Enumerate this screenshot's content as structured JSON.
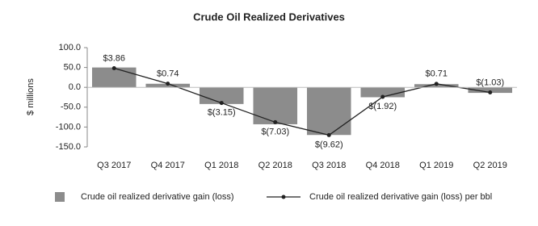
{
  "chart_data": {
    "type": "bar",
    "title": "Crude Oil Realized Derivatives",
    "y_label": "$ millions",
    "categories": [
      "Q3 2017",
      "Q4 2017",
      "Q1 2018",
      "Q2 2018",
      "Q3 2018",
      "Q4 2018",
      "Q1 2019",
      "Q2 2019"
    ],
    "series": [
      {
        "name": "Crude oil realized derivative gain (loss)",
        "type": "bar",
        "color": "#8c8c8c",
        "values": [
          50,
          9,
          -42,
          -93,
          -120,
          -25,
          8,
          -14
        ]
      },
      {
        "name": "Crude oil realized derivative gain (loss) per bbl",
        "type": "line",
        "color": "#222222",
        "axis": "y2",
        "values": [
          3.86,
          0.74,
          -3.15,
          -7.03,
          -9.62,
          -1.92,
          0.71,
          -1.03
        ],
        "value_labels": [
          "$3.86",
          "$0.74",
          "$(3.15)",
          "$(7.03)",
          "$(9.62)",
          "$(1.92)",
          "$0.71",
          "$(1.03)"
        ]
      }
    ],
    "ylim": [
      -150,
      100
    ],
    "yticks": [
      {
        "value": -150,
        "label": "-150.0"
      },
      {
        "value": -100,
        "label": "-100.0"
      },
      {
        "value": -50,
        "label": "-50.0"
      },
      {
        "value": 0,
        "label": "0.0"
      },
      {
        "value": 50,
        "label": "50.0"
      },
      {
        "value": 100,
        "label": "100.0"
      }
    ],
    "y2lim": [
      -12,
      8
    ]
  }
}
